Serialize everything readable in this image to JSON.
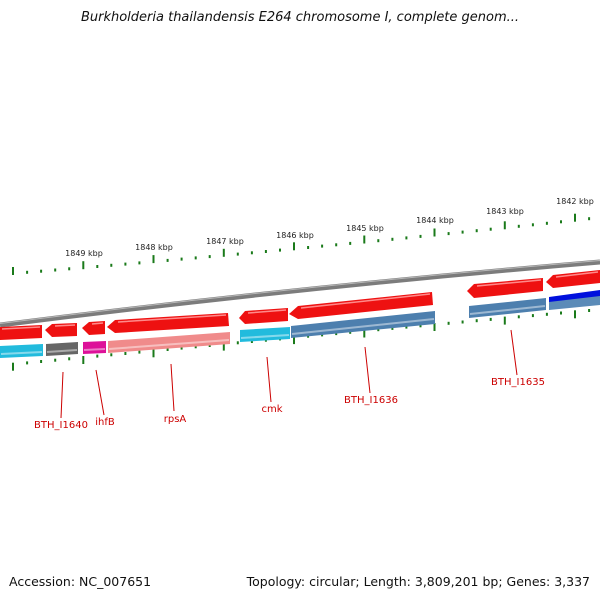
{
  "title": "Burkholderia thailandensis E264 chromosome I, complete genom...",
  "footer": {
    "accession": "Accession: NC_007651",
    "info": "Topology: circular; Length: 3,809,201 bp; Genes: 3,337"
  },
  "colors": {
    "forward": "#ee1111",
    "backbone": "#888888",
    "ruler_tick": "#1a7a1a",
    "label": "#cc0000",
    "cyan": "#22bbdd",
    "steelblue": "#4d7fae",
    "gray": "#666666",
    "magenta": "#dd1199",
    "salmon": "#f08080",
    "blue": "#0010dd"
  },
  "ruler": {
    "labels": [
      "1849 kbp",
      "1848 kbp",
      "1847 kbp",
      "1846 kbp",
      "1845 kbp",
      "1844 kbp",
      "1843 kbp",
      "1842 kbp"
    ]
  },
  "genes": {
    "labels": [
      "BTH_I1640",
      "ihfB",
      "rpsA",
      "cmk",
      "BTH_I1636",
      "BTH_I1635"
    ]
  }
}
